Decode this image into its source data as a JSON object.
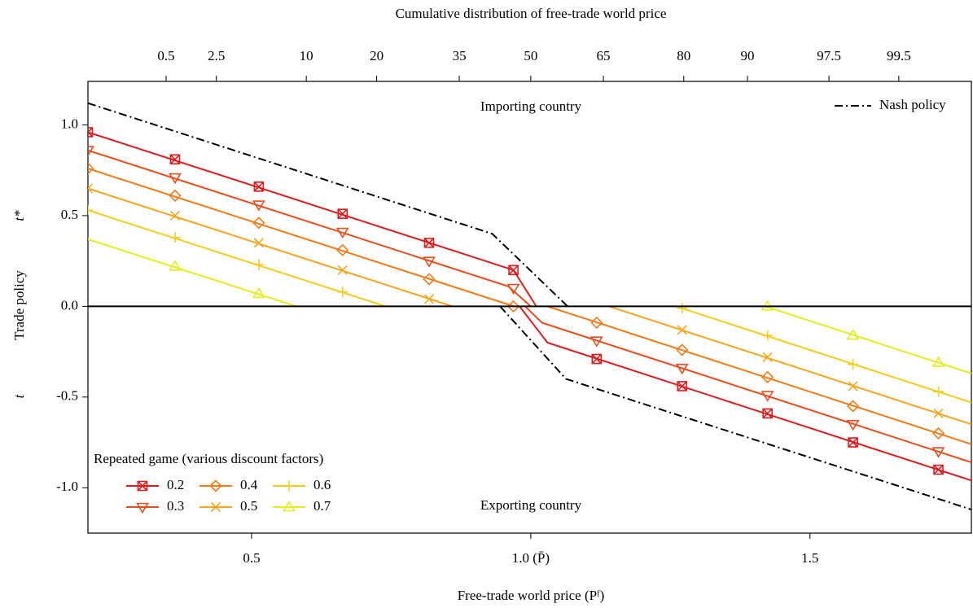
{
  "chart_data": {
    "type": "line",
    "title": "Cumulative distribution of free-trade world price",
    "x_label": "Free-trade world price (Pᶠ)",
    "y_label": "Trade policy",
    "y_label_top": "t*",
    "y_label_bottom": "t",
    "annotations": [
      "Importing country",
      "Exporting country"
    ],
    "legend_title": "Repeated game (various discount factors)",
    "legend": "lower left",
    "xlim": [
      0.207,
      1.789
    ],
    "ylim": [
      -1.25,
      1.24
    ],
    "xticks": [
      0.5,
      {
        "value": 1.0,
        "label": "1.0 (P̄)"
      },
      1.5
    ],
    "yticks": [
      {
        "value": 1,
        "label": "1.0"
      },
      0.5,
      {
        "value": 0,
        "label": "0.0"
      },
      -0.5,
      {
        "value": -1,
        "label": "-1.0"
      }
    ],
    "x2ticks": [
      {
        "value": 0.347,
        "label": "0.5"
      },
      {
        "value": 0.437,
        "label": "2.5"
      },
      {
        "value": 0.598,
        "label": "10"
      },
      {
        "value": 0.724,
        "label": "20"
      },
      {
        "value": 0.872,
        "label": "35"
      },
      {
        "value": 1.0,
        "label": "50"
      },
      {
        "value": 1.13,
        "label": "65"
      },
      {
        "value": 1.274,
        "label": "80"
      },
      {
        "value": 1.388,
        "label": "90"
      },
      {
        "value": 1.534,
        "label": "97.5"
      },
      {
        "value": 1.659,
        "label": "99.5"
      }
    ],
    "hline": 0,
    "series": [
      {
        "name": "0.2",
        "color": "#e31a1c",
        "marker": "square-x",
        "x": [
          0.207,
          0.969,
          1.01,
          null,
          0.98,
          1.03,
          1.789
        ],
        "values": [
          0.96,
          0.2,
          0.0,
          null,
          0.0,
          -0.2,
          -0.96
        ],
        "marker_x": [
          0.207,
          0.363,
          0.513,
          0.663,
          0.818,
          0.969,
          1.118,
          1.271,
          1.424,
          1.577,
          1.73
        ],
        "marker_values": [
          0.96,
          0.81,
          0.66,
          0.51,
          0.35,
          0.2,
          -0.29,
          -0.44,
          -0.59,
          -0.75,
          -0.9
        ]
      },
      {
        "name": "0.3",
        "color": "#ef4a1a",
        "marker": "triangle-down",
        "x": [
          0.207,
          0.96,
          1.0,
          null,
          0.99,
          1.02,
          1.789
        ],
        "values": [
          0.86,
          0.11,
          0.0,
          null,
          0.0,
          -0.09,
          -0.86
        ],
        "marker_x": [
          0.207,
          0.363,
          0.513,
          0.663,
          0.818,
          0.969,
          1.118,
          1.271,
          1.424,
          1.577,
          1.73
        ],
        "marker_values": [
          0.86,
          0.71,
          0.56,
          0.41,
          0.25,
          0.1,
          -0.19,
          -0.34,
          -0.49,
          -0.65,
          -0.8
        ]
      },
      {
        "name": "0.4",
        "color": "#f57a14",
        "marker": "diamond",
        "x": [
          0.207,
          0.97,
          null,
          1.03,
          1.789
        ],
        "values": [
          0.76,
          0.0,
          null,
          0.0,
          -0.76
        ],
        "marker_x": [
          0.207,
          0.363,
          0.513,
          0.663,
          0.818,
          0.969,
          1.118,
          1.271,
          1.424,
          1.577,
          1.73
        ],
        "marker_values": [
          0.76,
          0.61,
          0.46,
          0.31,
          0.15,
          0.0,
          -0.09,
          -0.24,
          -0.39,
          -0.55,
          -0.7
        ]
      },
      {
        "name": "0.5",
        "color": "#f8a51c",
        "marker": "cross",
        "x": [
          0.207,
          0.86,
          null,
          1.14,
          1.789
        ],
        "values": [
          0.65,
          0.0,
          null,
          0.0,
          -0.65
        ],
        "marker_x": [
          0.207,
          0.363,
          0.513,
          0.663,
          0.818,
          1.271,
          1.424,
          1.577,
          1.73
        ],
        "marker_values": [
          0.65,
          0.5,
          0.35,
          0.2,
          0.04,
          -0.13,
          -0.28,
          -0.44,
          -0.59
        ]
      },
      {
        "name": "0.6",
        "color": "#f5cd1a",
        "marker": "plus",
        "x": [
          0.207,
          0.74,
          null,
          1.26,
          1.789
        ],
        "values": [
          0.53,
          0.0,
          null,
          0.0,
          -0.53
        ],
        "marker_x": [
          0.207,
          0.363,
          0.513,
          0.663,
          1.271,
          1.424,
          1.577,
          1.73
        ],
        "marker_values": [
          0.53,
          0.38,
          0.23,
          0.08,
          -0.01,
          -0.16,
          -0.32,
          -0.47
        ]
      },
      {
        "name": "0.7",
        "color": "#e4ee1f",
        "marker": "triangle-up",
        "x": [
          0.207,
          0.58,
          null,
          1.42,
          1.789
        ],
        "values": [
          0.37,
          0.0,
          null,
          0.0,
          -0.37
        ],
        "marker_x": [
          0.363,
          0.513,
          1.424,
          1.577,
          1.73
        ],
        "marker_values": [
          0.22,
          0.07,
          0.0,
          -0.16,
          -0.31
        ]
      }
    ],
    "nash": {
      "name": "Nash policy",
      "color": "#000000",
      "x": [
        0.207,
        0.931,
        1.066,
        null,
        0.945,
        1.063,
        1.789
      ],
      "values": [
        1.12,
        0.4,
        0.0,
        null,
        0.0,
        -0.4,
        -1.12
      ]
    }
  }
}
